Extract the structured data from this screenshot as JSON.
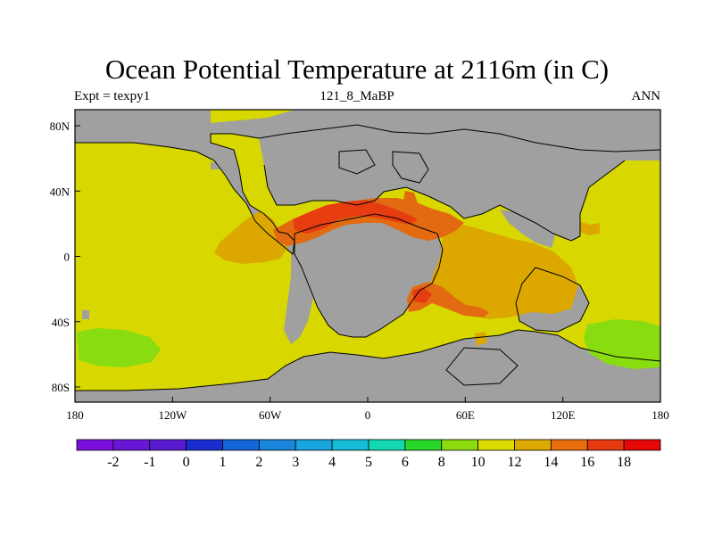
{
  "title": "Ocean Potential Temperature at 2116m (in C)",
  "left_label": "Expt = texpy1",
  "center_label": "121_8_MaBP",
  "right_label": "ANN",
  "lon_ticks": [
    "180",
    "120W",
    "60W",
    "0",
    "60E",
    "120E",
    "180"
  ],
  "lat_ticks": [
    "80N",
    "40N",
    "0",
    "40S",
    "80S"
  ],
  "colorbar_labels": [
    "-2",
    "-1",
    "0",
    "1",
    "2",
    "3",
    "4",
    "5",
    "6",
    "8",
    "10",
    "12",
    "14",
    "16",
    "18"
  ],
  "colorbar_colors": [
    "#7a10e0",
    "#6a16d8",
    "#5a1ad0",
    "#1a2ed0",
    "#1266d8",
    "#1a86dc",
    "#18a4dc",
    "#14bcd8",
    "#14d8b0",
    "#28d828",
    "#8cdc10",
    "#dcdc00",
    "#dcaa00",
    "#e86e10",
    "#e63a10",
    "#e40808"
  ],
  "colors": {
    "land": "#a0a0a0",
    "warm12": "#d8d800",
    "warm10": "#88dc10",
    "warm14": "#dca800",
    "warm16": "#e26a10",
    "warm18": "#e63c10"
  }
}
